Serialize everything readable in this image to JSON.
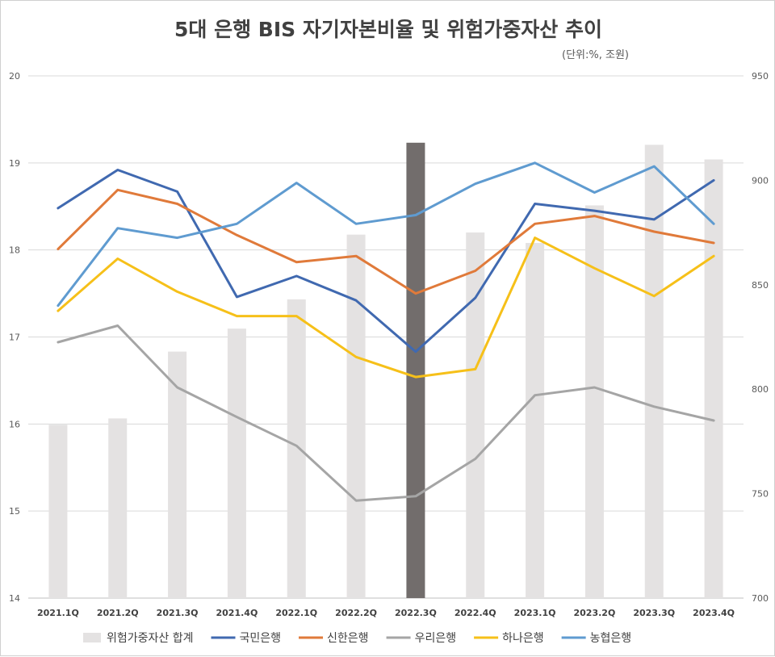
{
  "chart_data": {
    "type": "bar+line",
    "title": "5대 은행 BIS 자기자본비율 및 위험가중자산 추이",
    "unit_note": "(단위:%, 조원)",
    "categories": [
      "2021.1Q",
      "2021.2Q",
      "2021.3Q",
      "2021.4Q",
      "2022.1Q",
      "2022.2Q",
      "2022.3Q",
      "2022.4Q",
      "2023.1Q",
      "2023.2Q",
      "2023.3Q",
      "2023.4Q"
    ],
    "y_left": {
      "min": 14,
      "max": 20,
      "ticks": [
        14,
        15,
        16,
        17,
        18,
        19,
        20
      ]
    },
    "y_right": {
      "min": 700,
      "max": 950,
      "ticks": [
        700,
        750,
        800,
        850,
        900,
        950
      ]
    },
    "bars": {
      "name": "위험가중자산 합계",
      "axis": "right",
      "values": [
        783,
        786,
        818,
        829,
        843,
        874,
        918,
        875,
        870,
        888,
        917,
        910
      ],
      "color": "#e4e2e2",
      "highlight_index": 6,
      "highlight_color": "#726d6c"
    },
    "series": [
      {
        "name": "국민은행",
        "color": "#4069b0",
        "values": [
          18.48,
          18.92,
          18.67,
          17.46,
          17.7,
          17.42,
          16.83,
          17.45,
          18.53,
          18.45,
          18.35,
          18.8
        ]
      },
      {
        "name": "신한은행",
        "color": "#e07a3a",
        "values": [
          18.01,
          18.69,
          18.53,
          18.17,
          17.86,
          17.93,
          17.5,
          17.76,
          18.3,
          18.39,
          18.21,
          18.08
        ]
      },
      {
        "name": "우리은행",
        "color": "#a5a5a5",
        "values": [
          16.94,
          17.13,
          16.42,
          16.08,
          15.75,
          15.12,
          15.17,
          15.6,
          16.33,
          16.42,
          16.2,
          16.04
        ]
      },
      {
        "name": "하나은행",
        "color": "#f6c019",
        "values": [
          17.3,
          17.9,
          17.52,
          17.24,
          17.24,
          16.77,
          16.54,
          16.63,
          18.14,
          17.79,
          17.47,
          17.93
        ]
      },
      {
        "name": "농협은행",
        "color": "#5f9bd0",
        "values": [
          17.36,
          18.25,
          18.14,
          18.3,
          18.77,
          18.3,
          18.4,
          18.76,
          19.0,
          18.66,
          18.96,
          18.3
        ]
      }
    ],
    "legend_position": "bottom",
    "grid": true
  }
}
